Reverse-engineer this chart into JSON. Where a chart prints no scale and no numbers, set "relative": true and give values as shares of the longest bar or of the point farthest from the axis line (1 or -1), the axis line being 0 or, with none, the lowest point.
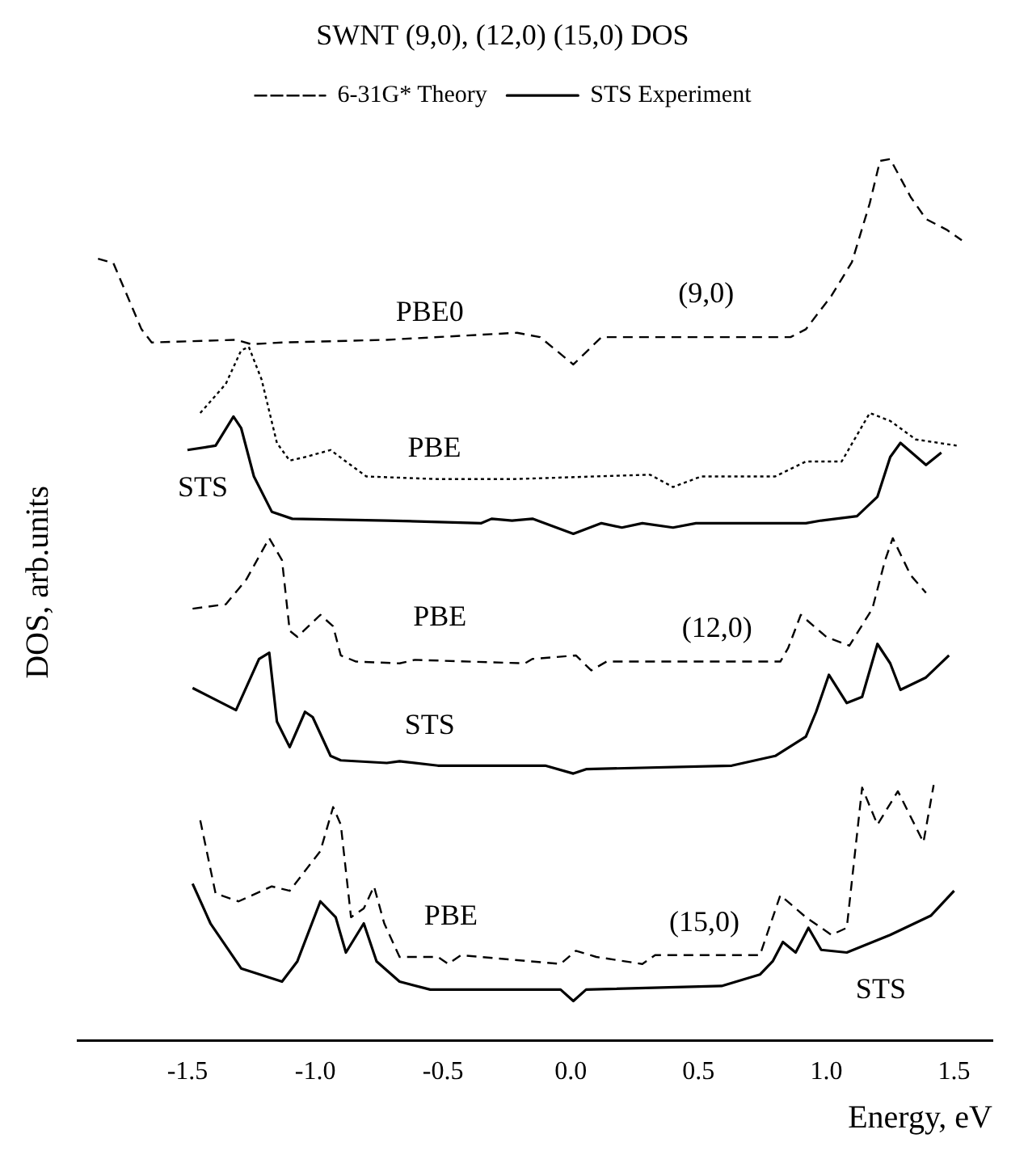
{
  "chart_data": {
    "type": "line",
    "title": "SWNT (9,0), (12,0) (15,0) DOS",
    "xlabel": "Energy, eV",
    "ylabel": "DOS, arb.units",
    "relative": true,
    "xlim": [
      -1.93,
      1.65
    ],
    "xticks": [
      {
        "value": -1.5,
        "label": "-1.5"
      },
      {
        "value": -1,
        "label": "-1.0"
      },
      {
        "value": -0.5,
        "label": "-0.5"
      },
      {
        "value": 0,
        "label": "0.0"
      },
      {
        "value": 0.5,
        "label": "0.5"
      },
      {
        "value": 1,
        "label": "1.0"
      },
      {
        "value": 1.5,
        "label": "1.5"
      }
    ],
    "grid": false,
    "legend": "top",
    "marker": "none",
    "series": [
      {
        "name": "6-31G* Theory",
        "color": "#000000",
        "line_style": "dashed",
        "x": [
          -1.85,
          -1.79,
          -1.68,
          -1.64,
          -1.31,
          -1.25,
          -1.13,
          -0.72,
          -0.21,
          -0.12,
          0.01,
          0.12,
          0.86,
          0.92,
          1.02,
          1.1,
          1.17,
          1.21,
          1.25,
          1.33,
          1.39,
          1.47,
          1.53
        ],
        "values": [
          0.887,
          0.882,
          0.807,
          0.792,
          0.795,
          0.79,
          0.792,
          0.795,
          0.803,
          0.798,
          0.767,
          0.798,
          0.798,
          0.807,
          0.845,
          0.883,
          0.95,
          0.998,
          1,
          0.957,
          0.932,
          0.92,
          0.908
        ]
      },
      {
        "color": "#000000",
        "line_style": "dotted",
        "x": [
          -1.45,
          -1.35,
          -1.29,
          -1.26,
          -1.21,
          -1.15,
          -1.1,
          -1.04,
          -0.94,
          -0.88,
          -0.8,
          -0.52,
          -0.23,
          0.31,
          0.4,
          0.51,
          0.8,
          0.92,
          1.06,
          1.17,
          1.25,
          1.35,
          1.51
        ],
        "values": [
          0.712,
          0.745,
          0.783,
          0.787,
          0.75,
          0.678,
          0.658,
          0.662,
          0.67,
          0.657,
          0.64,
          0.637,
          0.637,
          0.642,
          0.628,
          0.64,
          0.64,
          0.657,
          0.657,
          0.712,
          0.703,
          0.682,
          0.675
        ]
      },
      {
        "name": "STS Experiment",
        "color": "#000000",
        "line_style": "solid",
        "x": [
          -1.5,
          -1.39,
          -1.32,
          -1.29,
          -1.24,
          -1.17,
          -1.09,
          -0.72,
          -0.35,
          -0.31,
          -0.23,
          -0.15,
          0.01,
          0.12,
          0.2,
          0.28,
          0.4,
          0.49,
          0.92,
          0.98,
          1.12,
          1.2,
          1.25,
          1.29,
          1.39,
          1.45
        ],
        "values": [
          0.67,
          0.675,
          0.708,
          0.695,
          0.64,
          0.6,
          0.592,
          0.59,
          0.587,
          0.592,
          0.59,
          0.592,
          0.575,
          0.587,
          0.582,
          0.587,
          0.582,
          0.587,
          0.587,
          0.59,
          0.595,
          0.617,
          0.662,
          0.678,
          0.653,
          0.667
        ]
      },
      {
        "color": "#000000",
        "line_style": "dashed",
        "x": [
          -1.48,
          -1.35,
          -1.27,
          -1.18,
          -1.13,
          -1.1,
          -1.07,
          -0.98,
          -0.93,
          -0.9,
          -0.84,
          -0.67,
          -0.61,
          -0.18,
          -0.15,
          0.02,
          0.08,
          0.14,
          0.82,
          0.85,
          0.9,
          1,
          1.09,
          1.18,
          1.23,
          1.26,
          1.33,
          1.39
        ],
        "values": [
          0.49,
          0.495,
          0.523,
          0.57,
          0.545,
          0.465,
          0.458,
          0.483,
          0.47,
          0.437,
          0.43,
          0.428,
          0.432,
          0.428,
          0.433,
          0.437,
          0.42,
          0.43,
          0.43,
          0.445,
          0.483,
          0.458,
          0.448,
          0.49,
          0.545,
          0.57,
          0.528,
          0.508
        ]
      },
      {
        "color": "#000000",
        "line_style": "solid",
        "x": [
          -1.48,
          -1.31,
          -1.22,
          -1.18,
          -1.15,
          -1.1,
          -1.04,
          -1.01,
          -0.94,
          -0.9,
          -0.72,
          -0.67,
          -0.52,
          -0.1,
          0.01,
          0.06,
          0.63,
          0.8,
          0.92,
          0.96,
          1.01,
          1.08,
          1.14,
          1.2,
          1.25,
          1.29,
          1.39,
          1.48
        ],
        "values": [
          0.4,
          0.375,
          0.433,
          0.44,
          0.362,
          0.333,
          0.373,
          0.367,
          0.323,
          0.318,
          0.315,
          0.317,
          0.312,
          0.312,
          0.303,
          0.308,
          0.312,
          0.323,
          0.345,
          0.373,
          0.415,
          0.383,
          0.39,
          0.45,
          0.428,
          0.398,
          0.412,
          0.437
        ]
      },
      {
        "color": "#000000",
        "line_style": "dashed",
        "x": [
          -1.45,
          -1.39,
          -1.3,
          -1.17,
          -1.1,
          -0.98,
          -0.93,
          -0.9,
          -0.86,
          -0.81,
          -0.77,
          -0.73,
          -0.67,
          -0.52,
          -0.48,
          -0.43,
          -0.04,
          0.02,
          0.1,
          0.28,
          0.33,
          0.74,
          0.82,
          0.92,
          1.02,
          1.08,
          1.14,
          1.2,
          1.28,
          1.38,
          1.42
        ],
        "values": [
          0.25,
          0.167,
          0.158,
          0.175,
          0.17,
          0.215,
          0.265,
          0.245,
          0.14,
          0.15,
          0.175,
          0.133,
          0.095,
          0.095,
          0.087,
          0.097,
          0.087,
          0.102,
          0.095,
          0.087,
          0.097,
          0.097,
          0.165,
          0.14,
          0.12,
          0.128,
          0.287,
          0.245,
          0.283,
          0.225,
          0.29
        ]
      },
      {
        "color": "#000000",
        "line_style": "solid",
        "x": [
          -1.48,
          -1.41,
          -1.29,
          -1.13,
          -1.07,
          -0.98,
          -0.92,
          -0.88,
          -0.81,
          -0.76,
          -0.67,
          -0.55,
          -0.04,
          0.01,
          0.06,
          0.59,
          0.74,
          0.79,
          0.83,
          0.88,
          0.93,
          0.98,
          1.08,
          1.25,
          1.41,
          1.5
        ],
        "values": [
          0.178,
          0.133,
          0.082,
          0.067,
          0.09,
          0.158,
          0.14,
          0.1,
          0.133,
          0.09,
          0.067,
          0.058,
          0.058,
          0.045,
          0.058,
          0.062,
          0.075,
          0.09,
          0.112,
          0.1,
          0.128,
          0.103,
          0.1,
          0.12,
          0.142,
          0.17
        ]
      }
    ],
    "annotations": [
      "PBE0",
      "(9,0)",
      "PBE",
      "STS",
      "PBE",
      "(12,0)",
      "STS",
      "PBE",
      "(15,0)",
      "STS"
    ]
  }
}
